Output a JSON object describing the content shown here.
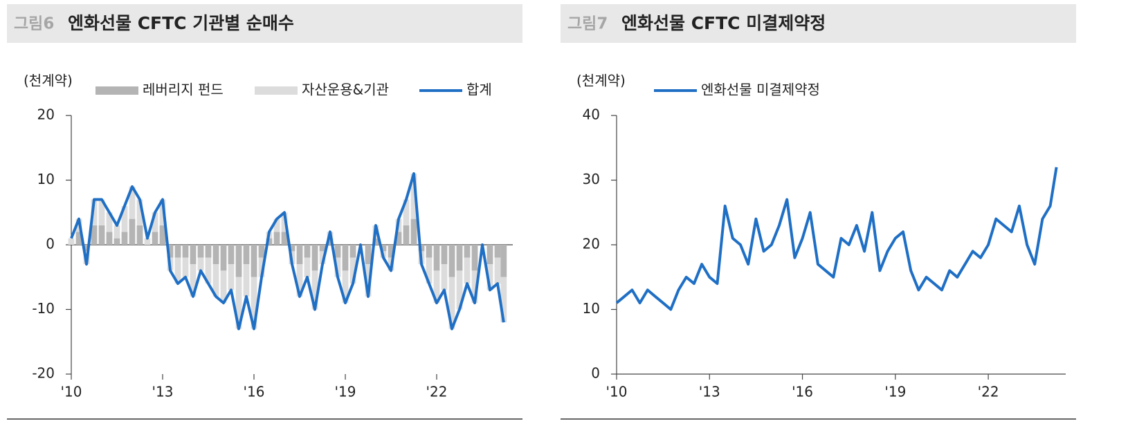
{
  "chart_data": [
    {
      "type": "bar_line",
      "figure_label": "그림6",
      "title": "엔화선물 CFTC 기관별 순매수",
      "y_label": "(천계약)",
      "x": [
        2010,
        2010.25,
        2010.5,
        2010.75,
        2011,
        2011.25,
        2011.5,
        2011.75,
        2012,
        2012.25,
        2012.5,
        2012.75,
        2013,
        2013.25,
        2013.5,
        2013.75,
        2014,
        2014.25,
        2014.5,
        2014.75,
        2015,
        2015.25,
        2015.5,
        2015.75,
        2016,
        2016.25,
        2016.5,
        2016.75,
        2017,
        2017.25,
        2017.5,
        2017.75,
        2018,
        2018.25,
        2018.5,
        2018.75,
        2019,
        2019.25,
        2019.5,
        2019.75,
        2020,
        2020.25,
        2020.5,
        2020.75,
        2021,
        2021.25,
        2021.5,
        2021.75,
        2022,
        2022.25,
        2022.5,
        2022.75,
        2023,
        2023.25,
        2023.5,
        2023.75,
        2024,
        2024.2
      ],
      "series": [
        {
          "name": "레버리지 펀드",
          "type": "bar",
          "color": "#b4b4b4",
          "values": [
            0,
            2,
            -1,
            3,
            3,
            2,
            1,
            2,
            4,
            3,
            0,
            2,
            3,
            -2,
            -2,
            -2,
            -3,
            -2,
            -2,
            -3,
            -4,
            -3,
            -5,
            -3,
            -5,
            -2,
            1,
            2,
            2,
            -1,
            -3,
            -2,
            -4,
            -1,
            1,
            -2,
            -4,
            -2,
            0,
            -3,
            1,
            -1,
            -2,
            2,
            3,
            4,
            -1,
            -2,
            -4,
            -3,
            -5,
            -4,
            -2,
            -4,
            0,
            -3,
            -2,
            -5
          ]
        },
        {
          "name": "자산운용&기관",
          "type": "bar",
          "color": "#dcdcdc",
          "values": [
            1,
            2,
            -2,
            4,
            4,
            3,
            2,
            4,
            5,
            4,
            1,
            3,
            4,
            -2,
            -4,
            -3,
            -5,
            -2,
            -4,
            -5,
            -5,
            -4,
            -8,
            -5,
            -8,
            -3,
            1,
            2,
            3,
            -2,
            -5,
            -3,
            -6,
            -2,
            1,
            -3,
            -5,
            -4,
            0,
            -5,
            2,
            -1,
            -2,
            2,
            4,
            7,
            -2,
            -4,
            -5,
            -4,
            -8,
            -6,
            -4,
            -5,
            0,
            -4,
            -4,
            -7
          ]
        },
        {
          "name": "합계",
          "type": "line",
          "color": "#1f6fc5",
          "values": [
            1,
            4,
            -3,
            7,
            7,
            5,
            3,
            6,
            9,
            7,
            1,
            5,
            7,
            -4,
            -6,
            -5,
            -8,
            -4,
            -6,
            -8,
            -9,
            -7,
            -13,
            -8,
            -13,
            -5,
            2,
            4,
            5,
            -3,
            -8,
            -5,
            -10,
            -3,
            2,
            -5,
            -9,
            -6,
            0,
            -8,
            3,
            -2,
            -4,
            4,
            7,
            11,
            -3,
            -6,
            -9,
            -7,
            -13,
            -10,
            -6,
            -9,
            0,
            -7,
            -6,
            -12
          ]
        }
      ],
      "xlim": [
        2010,
        2024.5
      ],
      "xticks": [
        {
          "value": 2010,
          "label": "'10"
        },
        {
          "value": 2013,
          "label": "'13"
        },
        {
          "value": 2016,
          "label": "'16"
        },
        {
          "value": 2019,
          "label": "'19"
        },
        {
          "value": 2022,
          "label": "'22"
        }
      ],
      "ylim": [
        -20,
        20
      ],
      "yticks": [
        20,
        10,
        0,
        -10,
        -20
      ]
    },
    {
      "type": "line",
      "figure_label": "그림7",
      "title": "엔화선물 CFTC 미결제약정",
      "y_label": "(천계약)",
      "x": [
        2010,
        2010.25,
        2010.5,
        2010.75,
        2011,
        2011.25,
        2011.5,
        2011.75,
        2012,
        2012.25,
        2012.5,
        2012.75,
        2013,
        2013.25,
        2013.5,
        2013.75,
        2014,
        2014.25,
        2014.5,
        2014.75,
        2015,
        2015.25,
        2015.5,
        2015.75,
        2016,
        2016.25,
        2016.5,
        2016.75,
        2017,
        2017.25,
        2017.5,
        2017.75,
        2018,
        2018.25,
        2018.5,
        2018.75,
        2019,
        2019.25,
        2019.5,
        2019.75,
        2020,
        2020.25,
        2020.5,
        2020.75,
        2021,
        2021.25,
        2021.5,
        2021.75,
        2022,
        2022.25,
        2022.5,
        2022.75,
        2023,
        2023.25,
        2023.5,
        2023.75,
        2024,
        2024.2
      ],
      "series": [
        {
          "name": "엔화선물 미결제약정",
          "type": "line",
          "color": "#1f6fc5",
          "values": [
            11,
            12,
            13,
            11,
            13,
            12,
            11,
            10,
            13,
            15,
            14,
            17,
            15,
            14,
            26,
            21,
            20,
            17,
            24,
            19,
            20,
            23,
            27,
            18,
            21,
            25,
            17,
            16,
            15,
            21,
            20,
            23,
            19,
            25,
            16,
            19,
            21,
            22,
            16,
            13,
            15,
            14,
            13,
            16,
            15,
            17,
            19,
            18,
            20,
            24,
            23,
            22,
            26,
            20,
            17,
            24,
            26,
            32
          ]
        }
      ],
      "xlim": [
        2010,
        2024.5
      ],
      "xticks": [
        {
          "value": 2010,
          "label": "'10"
        },
        {
          "value": 2013,
          "label": "'13"
        },
        {
          "value": 2016,
          "label": "'16"
        },
        {
          "value": 2019,
          "label": "'19"
        },
        {
          "value": 2022,
          "label": "'22"
        }
      ],
      "ylim": [
        0,
        40
      ],
      "yticks": [
        40,
        30,
        20,
        10,
        0
      ]
    }
  ]
}
